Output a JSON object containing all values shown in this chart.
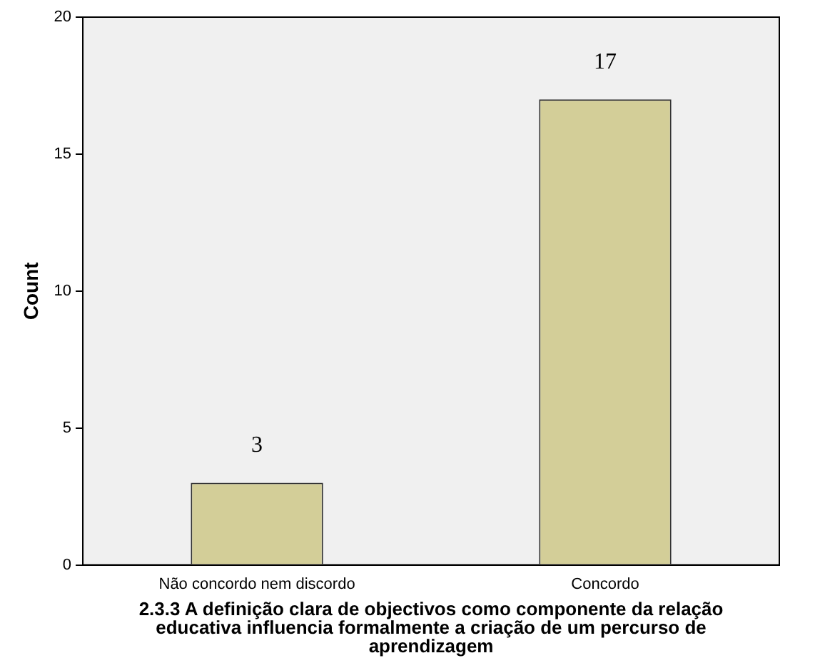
{
  "chart_data": {
    "type": "bar",
    "xlabel": "2.3.3 A definição clara de objectivos como componente da relação educativa influencia formalmente a criação de um percurso de aprendizagem",
    "ylabel": "Count",
    "categories": [
      "Não concordo nem discordo",
      "Concordo"
    ],
    "values": [
      3,
      17
    ],
    "color": "#d3ce98",
    "ylim": [
      0,
      20
    ],
    "yticks": [
      0,
      5,
      10,
      15,
      20
    ],
    "grid": false,
    "data_labels": true
  }
}
